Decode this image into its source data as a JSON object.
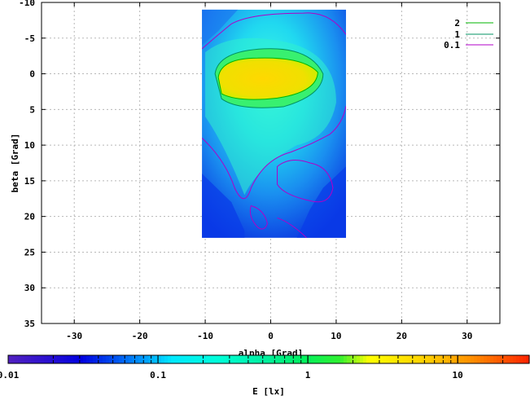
{
  "chart_data": {
    "type": "heatmap",
    "title": "",
    "xlabel": "alpha [Grad]",
    "ylabel": "beta [Grad]",
    "xlim": [
      -35,
      35
    ],
    "ylim": [
      35,
      -10
    ],
    "x_ticks": [
      -30,
      -20,
      -10,
      0,
      10,
      20,
      30
    ],
    "y_ticks": [
      -10,
      -5,
      0,
      5,
      10,
      15,
      20,
      25,
      30,
      35
    ],
    "y_reversed": true,
    "grid": true,
    "heatmap_extent": {
      "x": [
        -10.5,
        11.5
      ],
      "y": [
        -9,
        23
      ]
    },
    "contours": [
      {
        "name": "2",
        "level": 2,
        "color": "#00b400"
      },
      {
        "name": "1",
        "level": 1,
        "color": "#009060"
      },
      {
        "name": "0.1",
        "level": 0.1,
        "color": "#b000c8"
      }
    ],
    "legend_position": "top-right",
    "colorbar": {
      "label": "E [lx]",
      "scale": "log",
      "range": [
        0.01,
        30
      ],
      "tick_labels": [
        "0.01",
        "0.1",
        "1",
        "10"
      ],
      "tick_values": [
        0.01,
        0.1,
        1,
        10
      ]
    }
  }
}
